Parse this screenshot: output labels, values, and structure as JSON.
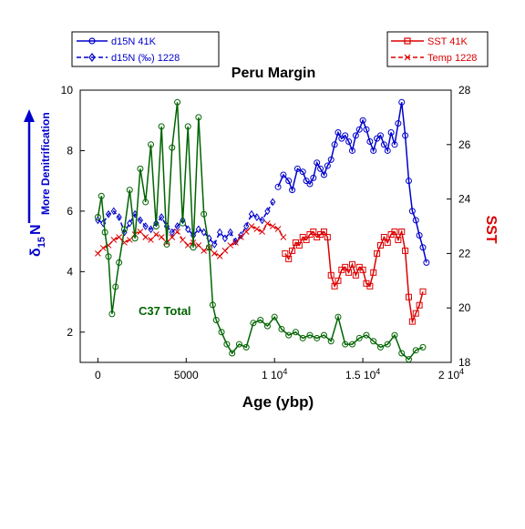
{
  "chart_data": {
    "type": "line",
    "title": "Peru Margin",
    "xlabel": "Age (ybp)",
    "xlim": [
      -1000,
      20000
    ],
    "x_ticks": [
      0,
      5000,
      10000,
      15000,
      20000
    ],
    "x_tick_labels": [
      "0",
      "5000",
      "1 10^4",
      "1.5 10^4",
      "2 10^4"
    ],
    "left_axis": {
      "label": "δ15N",
      "label_main": "δ",
      "label_sub": "15",
      "label_tail": "N",
      "arrow_label": "More Denitrification",
      "ylim": [
        1,
        10
      ],
      "ticks": [
        2,
        4,
        6,
        8,
        10
      ]
    },
    "right_axis": {
      "label": "SST",
      "ylim": [
        18,
        28
      ],
      "ticks": [
        18,
        20,
        22,
        24,
        26,
        28
      ]
    },
    "annotation": "C37 Total",
    "legend_left": [
      "d15N 41K",
      "d15N (‰) 1228"
    ],
    "legend_right": [
      "SST 41K",
      "Temp 1228"
    ],
    "colors": {
      "blue": "#0000cc",
      "red": "#dd0000",
      "green": "#006400"
    },
    "series": [
      {
        "name": "d15N 41K",
        "axis": "left",
        "color": "#0000cc",
        "marker": "circle",
        "line": "solid",
        "x": [
          10200,
          10500,
          10800,
          11000,
          11300,
          11600,
          11800,
          12000,
          12200,
          12400,
          12600,
          12800,
          13000,
          13200,
          13400,
          13600,
          13800,
          14000,
          14200,
          14400,
          14600,
          14800,
          15000,
          15200,
          15400,
          15600,
          15800,
          16000,
          16200,
          16400,
          16600,
          16800,
          17000,
          17200,
          17400,
          17600,
          17800,
          18000,
          18200,
          18400,
          18600
        ],
        "y": [
          6.8,
          7.2,
          7.0,
          6.7,
          7.4,
          7.3,
          7.0,
          6.9,
          7.1,
          7.6,
          7.4,
          7.2,
          7.5,
          7.7,
          8.2,
          8.6,
          8.4,
          8.5,
          8.3,
          8.0,
          8.5,
          8.7,
          9.0,
          8.7,
          8.3,
          8.0,
          8.4,
          8.5,
          8.2,
          8.0,
          8.6,
          8.2,
          8.9,
          9.6,
          8.5,
          7.0,
          6.0,
          5.7,
          5.2,
          4.8,
          4.3
        ]
      },
      {
        "name": "d15N (‰) 1228",
        "axis": "left",
        "color": "#0000cc",
        "marker": "diamond",
        "line": "dashed",
        "x": [
          0,
          300,
          600,
          900,
          1200,
          1500,
          1800,
          2100,
          2400,
          2700,
          3000,
          3300,
          3600,
          3900,
          4200,
          4500,
          4800,
          5100,
          5400,
          5700,
          6000,
          6300,
          6600,
          6900,
          7200,
          7500,
          7800,
          8100,
          8400,
          8700,
          9000,
          9300,
          9600,
          9900
        ],
        "y": [
          5.7,
          5.6,
          5.9,
          6.0,
          5.8,
          5.3,
          5.6,
          5.9,
          5.7,
          5.5,
          5.4,
          5.6,
          5.8,
          5.5,
          5.3,
          5.5,
          5.7,
          5.4,
          5.2,
          5.4,
          5.3,
          5.1,
          4.9,
          5.3,
          5.1,
          5.3,
          5.0,
          5.2,
          5.5,
          5.9,
          5.8,
          5.7,
          6.0,
          6.3
        ]
      },
      {
        "name": "SST 41K",
        "axis": "right",
        "color": "#dd0000",
        "marker": "square",
        "line": "solid",
        "x": [
          10600,
          10800,
          11000,
          11200,
          11400,
          11600,
          11800,
          12000,
          12200,
          12400,
          12600,
          12800,
          13000,
          13200,
          13400,
          13600,
          13800,
          14000,
          14200,
          14400,
          14600,
          14800,
          15000,
          15200,
          15400,
          15600,
          15800,
          16000,
          16200,
          16400,
          16600,
          16800,
          17000,
          17200,
          17400,
          17600,
          17800,
          18000,
          18200,
          18400
        ],
        "y": [
          22.0,
          21.8,
          22.1,
          22.4,
          22.3,
          22.6,
          22.5,
          22.7,
          22.8,
          22.6,
          22.7,
          22.8,
          22.6,
          21.2,
          20.8,
          21.0,
          21.4,
          21.5,
          21.3,
          21.6,
          21.2,
          21.5,
          21.4,
          20.9,
          20.8,
          21.3,
          22.0,
          22.3,
          22.6,
          22.4,
          22.7,
          22.8,
          22.5,
          22.8,
          22.1,
          20.4,
          19.5,
          19.8,
          20.1,
          20.6
        ]
      },
      {
        "name": "Temp 1228",
        "axis": "right",
        "color": "#dd0000",
        "marker": "x",
        "line": "dashed",
        "x": [
          0,
          300,
          600,
          900,
          1200,
          1500,
          1800,
          2100,
          2400,
          2700,
          3000,
          3300,
          3600,
          3900,
          4200,
          4500,
          4800,
          5100,
          5400,
          5700,
          6000,
          6300,
          6600,
          6900,
          7200,
          7500,
          7800,
          8100,
          8400,
          8700,
          9000,
          9300,
          9600,
          9900,
          10200,
          10500
        ],
        "y": [
          22.0,
          22.2,
          22.3,
          22.5,
          22.6,
          22.4,
          22.5,
          22.7,
          22.8,
          22.6,
          22.5,
          22.7,
          22.6,
          22.4,
          22.6,
          22.8,
          22.5,
          22.3,
          22.4,
          22.3,
          22.1,
          22.2,
          22.0,
          21.9,
          22.1,
          22.3,
          22.4,
          22.6,
          22.8,
          23.0,
          22.9,
          22.8,
          23.1,
          23.0,
          22.9,
          22.6
        ]
      },
      {
        "name": "C37 Total",
        "axis": "left",
        "color": "#006400",
        "marker": "circle",
        "line": "solid",
        "x": [
          0,
          200,
          400,
          600,
          800,
          1000,
          1200,
          1500,
          1800,
          2100,
          2400,
          2700,
          3000,
          3300,
          3600,
          3900,
          4200,
          4500,
          4800,
          5100,
          5400,
          5700,
          6000,
          6300,
          6500,
          6700,
          7000,
          7300,
          7600,
          8000,
          8400,
          8800,
          9200,
          9600,
          10000,
          10400,
          10800,
          11200,
          11600,
          12000,
          12400,
          12800,
          13200,
          13600,
          14000,
          14400,
          14800,
          15200,
          15600,
          16000,
          16400,
          16800,
          17200,
          17600,
          18000,
          18400
        ],
        "y": [
          5.8,
          6.5,
          5.3,
          4.5,
          2.6,
          3.5,
          4.3,
          5.4,
          6.7,
          5.1,
          7.4,
          6.3,
          8.2,
          5.5,
          8.8,
          4.9,
          8.1,
          9.6,
          5.6,
          8.8,
          4.8,
          9.1,
          5.9,
          4.8,
          2.9,
          2.4,
          2.0,
          1.6,
          1.3,
          1.6,
          1.5,
          2.3,
          2.4,
          2.2,
          2.5,
          2.1,
          1.9,
          2.0,
          1.8,
          1.9,
          1.8,
          1.9,
          1.7,
          2.5,
          1.6,
          1.6,
          1.8,
          1.9,
          1.7,
          1.5,
          1.6,
          1.9,
          1.3,
          1.1,
          1.4,
          1.5
        ]
      }
    ]
  }
}
